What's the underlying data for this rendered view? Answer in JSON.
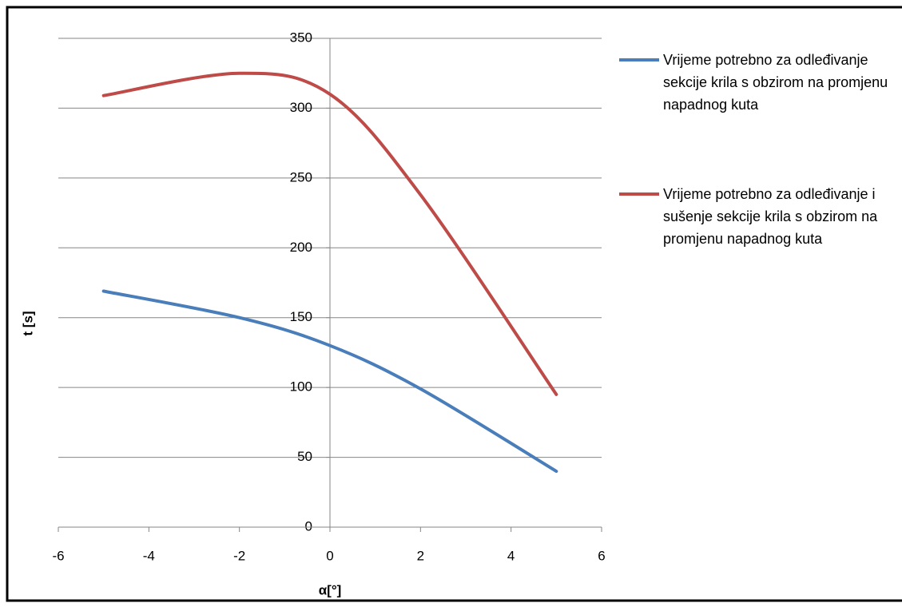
{
  "chart_data": {
    "type": "line",
    "xlabel": "α[°]",
    "ylabel": "t [s]",
    "xlim": [
      -6,
      6
    ],
    "xticks": [
      -6,
      -4,
      -2,
      0,
      2,
      4,
      6
    ],
    "ylim": [
      0,
      350
    ],
    "yticks": [
      0,
      50,
      100,
      150,
      200,
      250,
      300,
      350
    ],
    "grid": true,
    "smooth": true,
    "legend": "right",
    "x": [
      -5,
      -2,
      0,
      2,
      5
    ],
    "series": [
      {
        "name": "Vrijeme potrebno za odleđivanje sekcije krila s obzirom na promjenu napadnog kuta",
        "color": "#4a7ebb",
        "values": [
          169,
          150,
          130,
          99,
          40
        ]
      },
      {
        "name": "Vrijeme potrebno za odleđivanje i sušenje sekcije krila s obzirom na promjenu napadnog kuta",
        "color": "#be4b48",
        "values": [
          309,
          325,
          310,
          238,
          95
        ]
      }
    ]
  }
}
